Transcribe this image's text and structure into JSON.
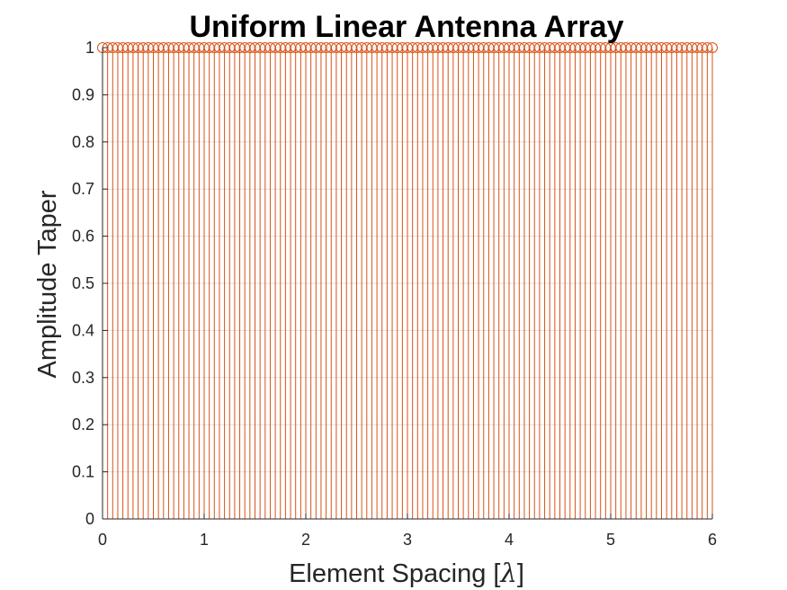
{
  "chart_data": {
    "type": "stem",
    "title": "Uniform Linear Antenna Array",
    "xlabel": "Element Spacing [",
    "xlabel_symbol": "λ",
    "xlabel_suffix": "]",
    "ylabel": "Amplitude Taper",
    "xlim": [
      0,
      6
    ],
    "ylim": [
      0,
      1
    ],
    "xticks": [
      "0",
      "1",
      "2",
      "3",
      "4",
      "5",
      "6"
    ],
    "yticks": [
      "0",
      "0.1",
      "0.2",
      "0.3",
      "0.4",
      "0.5",
      "0.6",
      "0.7",
      "0.8",
      "0.9",
      "1"
    ],
    "grid": true,
    "series": [
      {
        "color": "#d95319",
        "marker": "circle",
        "x_start": 0,
        "x_step": 0.05,
        "count": 121,
        "value": 1
      }
    ]
  }
}
